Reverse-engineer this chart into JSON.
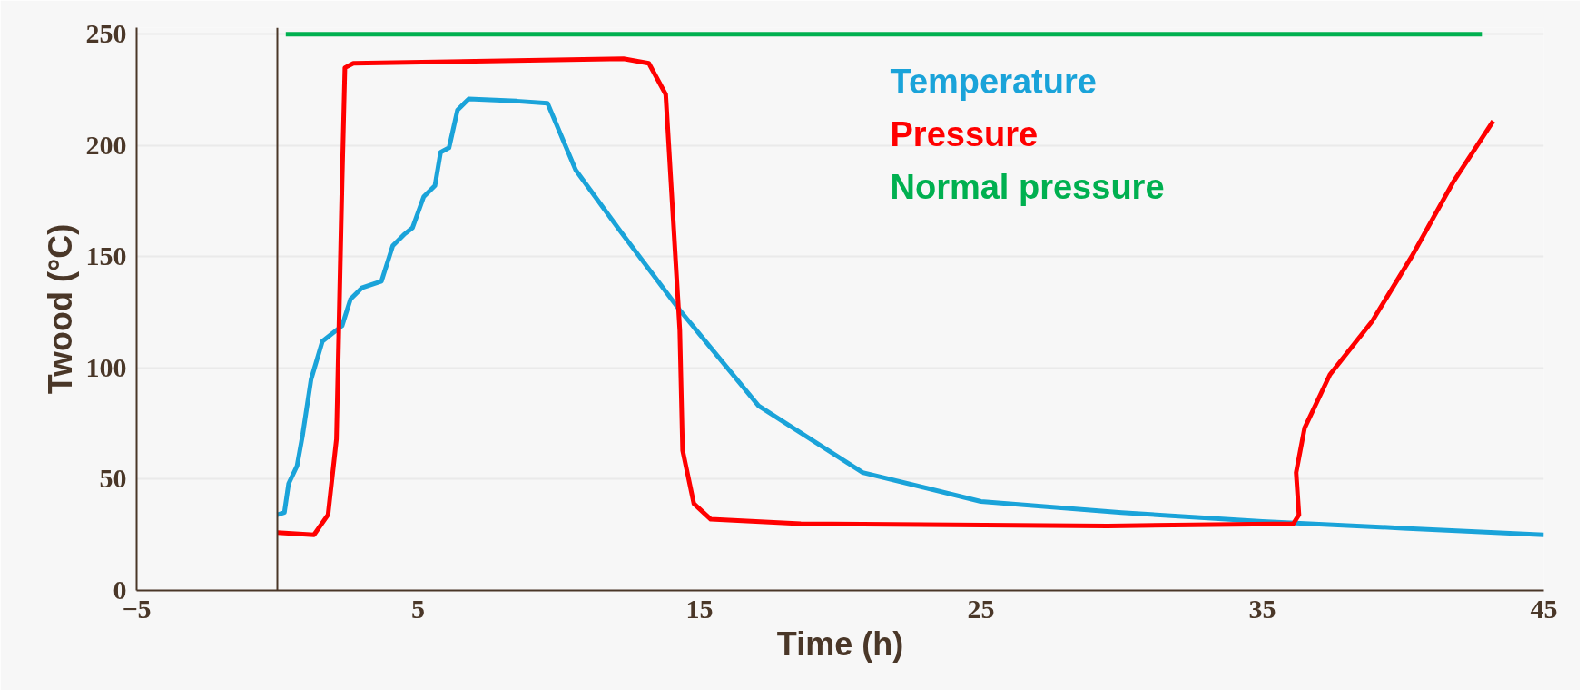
{
  "chart_data": {
    "type": "line",
    "xlabel": "Time (h)",
    "ylabel": "Twood (°C)",
    "xlim": [
      -5,
      45
    ],
    "ylim": [
      0,
      253
    ],
    "xticks": [
      -5,
      5,
      15,
      25,
      35,
      45
    ],
    "yticks": [
      0,
      50,
      100,
      150,
      200,
      250
    ],
    "grid": "y",
    "legend": "top",
    "line_style": "solid",
    "marker": "none",
    "series": [
      {
        "name": "Temperature",
        "color": "#1aa3d9",
        "x": [
          0,
          0.25,
          0.4,
          0.7,
          0.9,
          1.2,
          1.6,
          2.3,
          2.6,
          3.0,
          3.7,
          4.1,
          4.5,
          4.8,
          5.2,
          5.6,
          5.8,
          6.1,
          6.4,
          6.8,
          8.5,
          9.6,
          10.6,
          12.1,
          14.3,
          17.1,
          20.8,
          25,
          30,
          35,
          40,
          45
        ],
        "values": [
          34,
          35,
          48,
          56,
          70,
          95,
          112,
          119,
          131,
          136,
          139,
          155,
          160,
          163,
          177,
          182,
          197,
          199,
          216,
          221,
          220,
          219,
          189,
          163,
          126,
          83,
          53,
          40,
          35,
          31,
          28,
          25
        ]
      },
      {
        "name": "Pressure",
        "color": "#ff0000",
        "x": [
          0,
          1.3,
          1.8,
          2.1,
          2.3,
          2.4,
          2.7,
          12.3,
          13.2,
          13.8,
          14.3,
          14.4,
          14.8,
          15.4,
          18.6,
          29.5,
          36.1,
          36.3,
          36.2,
          36.5,
          37.4,
          38.9,
          40.3,
          41.8,
          43.2
        ],
        "values": [
          26,
          25,
          34,
          68,
          184,
          235,
          237,
          239,
          237,
          223,
          117,
          63,
          39,
          32,
          30,
          29,
          30,
          34,
          53,
          73,
          97,
          121,
          150,
          184,
          211
        ]
      },
      {
        "name": "Normal pressure",
        "color": "#00b050",
        "x": [
          0.3,
          42.8
        ],
        "values": [
          250,
          250
        ]
      }
    ]
  }
}
